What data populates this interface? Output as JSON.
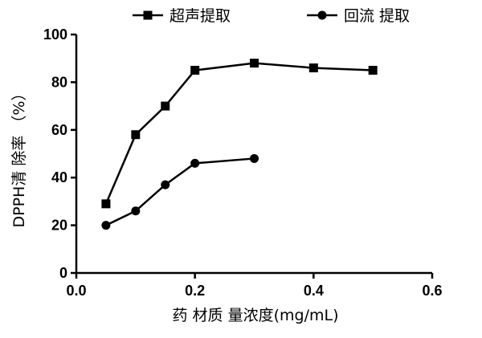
{
  "chart_data": {
    "type": "line",
    "xlabel": "药 材质 量浓度(mg/mL)",
    "ylabel": "DPPH清 除率 （%）",
    "xlim": [
      0.0,
      0.6
    ],
    "ylim": [
      0,
      100
    ],
    "xticks": [
      0.0,
      0.2,
      0.4,
      0.6
    ],
    "xtick_labels": [
      "0.0",
      "0.2",
      "0.4",
      "0.6"
    ],
    "yticks": [
      0,
      20,
      40,
      60,
      80,
      100
    ],
    "ytick_labels": [
      "0",
      "20",
      "40",
      "60",
      "80",
      "100"
    ],
    "grid": false,
    "legend_position": "top",
    "series": [
      {
        "name": "超声提取",
        "marker": "square",
        "color": "#000000",
        "x": [
          0.05,
          0.1,
          0.15,
          0.2,
          0.3,
          0.4,
          0.5
        ],
        "y": [
          29,
          58,
          70,
          85,
          88,
          86,
          85
        ]
      },
      {
        "name": "回流 提取",
        "marker": "circle",
        "color": "#000000",
        "x": [
          0.05,
          0.1,
          0.15,
          0.2,
          0.3
        ],
        "y": [
          20,
          26,
          37,
          46,
          48
        ]
      }
    ]
  }
}
